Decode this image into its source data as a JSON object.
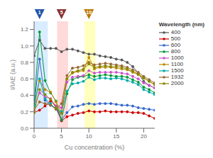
{
  "chart_data": {
    "type": "line",
    "xlabel": "Cu concentration (%)",
    "ylabel": "I/IAE (a.u.)",
    "x": [
      0,
      1,
      2,
      3,
      4,
      5,
      6,
      7,
      8,
      9,
      10,
      11,
      12,
      13,
      14,
      15,
      16,
      17,
      18,
      19,
      20,
      21,
      22
    ],
    "series": [
      {
        "name": "400",
        "color": "#555555",
        "values": [
          0.88,
          1.07,
          0.97,
          0.97,
          0.97,
          0.93,
          0.96,
          0.96,
          0.94,
          0.92,
          0.9,
          0.9,
          0.88,
          0.87,
          0.86,
          0.84,
          0.83,
          0.8,
          0.75,
          0.67,
          0.57,
          0.52,
          0.49
        ]
      },
      {
        "name": "500",
        "color": "#cc0000",
        "values": [
          0.19,
          0.22,
          0.27,
          0.33,
          0.27,
          0.09,
          0.14,
          0.16,
          0.18,
          0.19,
          0.21,
          0.2,
          0.2,
          0.21,
          0.2,
          0.2,
          0.2,
          0.2,
          0.19,
          0.19,
          0.18,
          0.15,
          0.12
        ]
      },
      {
        "name": "600",
        "color": "#3366cc",
        "values": [
          0.29,
          0.84,
          0.34,
          0.28,
          0.24,
          0.1,
          0.19,
          0.26,
          0.27,
          0.29,
          0.3,
          0.29,
          0.3,
          0.3,
          0.3,
          0.29,
          0.28,
          0.28,
          0.27,
          0.25,
          0.24,
          0.23,
          0.22
        ]
      },
      {
        "name": "800",
        "color": "#009933",
        "values": [
          0.29,
          1.17,
          0.58,
          0.43,
          0.33,
          0.1,
          0.42,
          0.59,
          0.62,
          0.63,
          0.65,
          0.63,
          0.64,
          0.65,
          0.64,
          0.63,
          0.63,
          0.62,
          0.59,
          0.56,
          0.5,
          0.47,
          0.43
        ]
      },
      {
        "name": "1000",
        "color": "#cc55cc",
        "values": [
          0.27,
          0.43,
          0.38,
          0.36,
          0.27,
          0.25,
          0.56,
          0.62,
          0.63,
          0.64,
          0.7,
          0.67,
          0.68,
          0.68,
          0.68,
          0.68,
          0.67,
          0.66,
          0.63,
          0.6,
          0.55,
          0.52,
          0.49
        ]
      },
      {
        "name": "1100",
        "color": "#bb8800",
        "values": [
          0.26,
          0.58,
          0.47,
          0.44,
          0.32,
          0.19,
          0.6,
          0.67,
          0.69,
          0.7,
          0.86,
          0.72,
          0.74,
          0.74,
          0.74,
          0.73,
          0.72,
          0.71,
          0.68,
          0.65,
          0.61,
          0.57,
          0.53
        ]
      },
      {
        "name": "1500",
        "color": "#00aaaa",
        "values": [
          0.27,
          0.6,
          0.36,
          0.3,
          0.23,
          0.2,
          0.45,
          0.54,
          0.55,
          0.57,
          0.62,
          0.59,
          0.61,
          0.61,
          0.6,
          0.61,
          0.6,
          0.58,
          0.56,
          0.53,
          0.47,
          0.44,
          0.41
        ]
      },
      {
        "name": "1932",
        "color": "#996633",
        "values": [
          0.22,
          0.32,
          0.3,
          0.28,
          0.23,
          0.3,
          0.64,
          0.73,
          0.74,
          0.76,
          0.8,
          0.77,
          0.78,
          0.79,
          0.78,
          0.77,
          0.76,
          0.74,
          0.71,
          0.68,
          0.63,
          0.59,
          0.55
        ]
      },
      {
        "name": "2000",
        "color": "#888800",
        "values": [
          0.19,
          0.47,
          0.41,
          0.35,
          0.25,
          0.18,
          0.6,
          0.68,
          0.7,
          0.72,
          0.78,
          0.74,
          0.75,
          0.76,
          0.75,
          0.75,
          0.74,
          0.72,
          0.69,
          0.66,
          0.61,
          0.57,
          0.53
        ]
      }
    ],
    "xlim": [
      0,
      22
    ],
    "ylim": [
      0.0,
      1.3
    ],
    "xticks": [
      0,
      5,
      10,
      15,
      20
    ],
    "yticks": [
      {
        "value": 0.0,
        "label": "0.0"
      },
      0.2,
      0.4,
      0.6,
      0.8,
      {
        "value": 1.0,
        "label": "1.0"
      },
      1.2
    ],
    "bg_regions": [
      {
        "x0": 0.0,
        "x1": 2.5,
        "color": "#bbddff"
      },
      {
        "x0": 4.2,
        "x1": 6.2,
        "color": "#ffbbbb"
      },
      {
        "x0": 9.2,
        "x1": 11.2,
        "color": "#ffff88"
      }
    ],
    "annotations": [
      {
        "x": 1,
        "label": "1",
        "color": "#2255aa"
      },
      {
        "x": 5,
        "label": "5",
        "color": "#883333"
      },
      {
        "x": 10,
        "label": "10",
        "color": "#bb7700"
      }
    ],
    "legend_title": "Wavelength (nm)",
    "legend": "upper right",
    "grid": false,
    "marker": "circle",
    "line_style": "solid"
  }
}
